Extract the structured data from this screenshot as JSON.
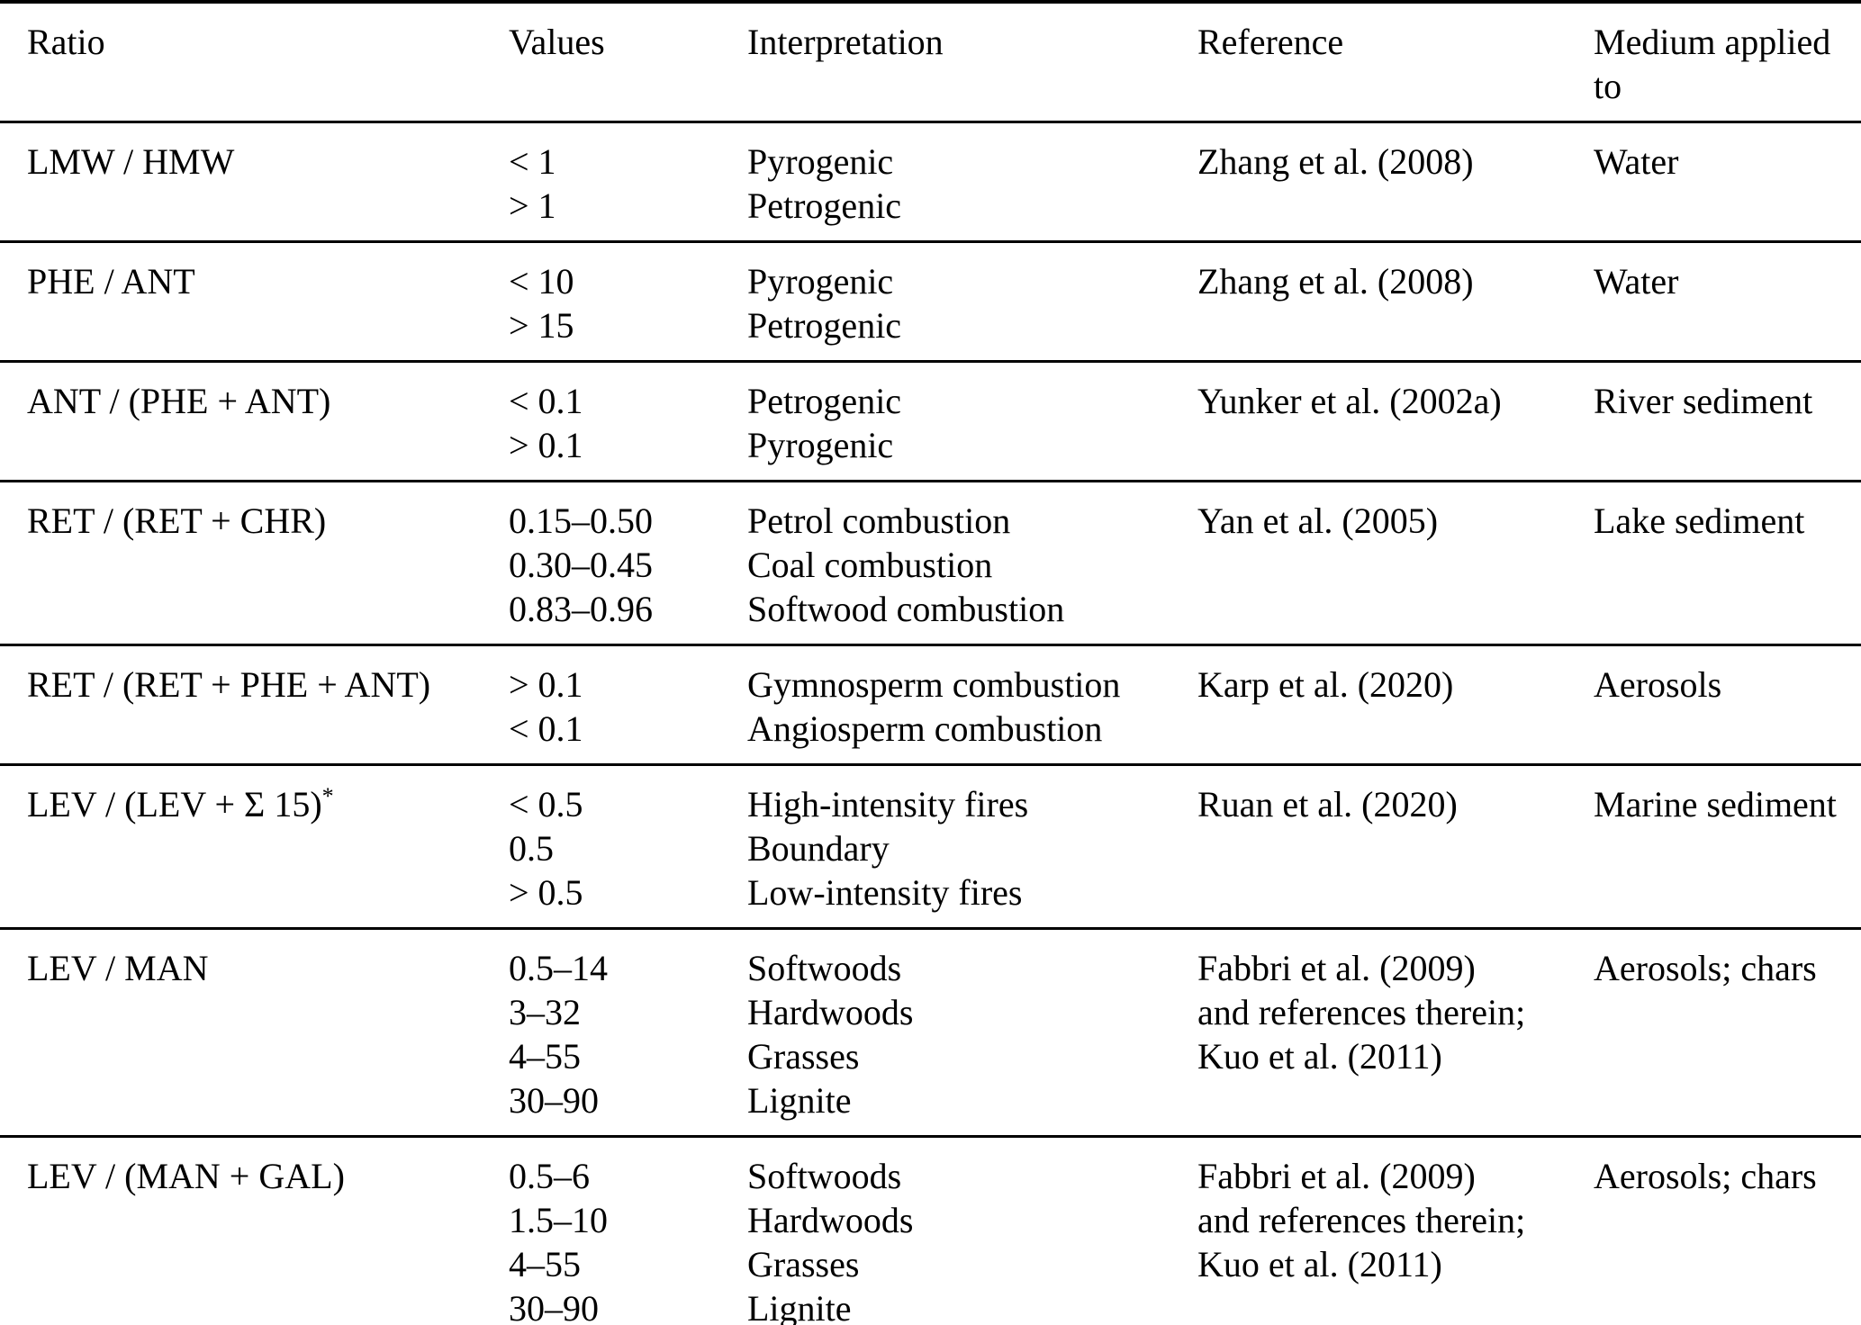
{
  "table": {
    "columns": [
      "Ratio",
      "Values",
      "Interpretation",
      "Reference",
      "Medium applied to"
    ],
    "rows": [
      {
        "ratio": "LMW / HMW",
        "ratio_sup": "",
        "values": [
          "< 1",
          "> 1"
        ],
        "interpretations": [
          "Pyrogenic",
          "Petrogenic"
        ],
        "reference": [
          "Zhang et al. (2008)"
        ],
        "medium": "Water"
      },
      {
        "ratio": "PHE / ANT",
        "ratio_sup": "",
        "values": [
          "< 10",
          "> 15"
        ],
        "interpretations": [
          "Pyrogenic",
          "Petrogenic"
        ],
        "reference": [
          "Zhang et al. (2008)"
        ],
        "medium": "Water"
      },
      {
        "ratio": "ANT / (PHE + ANT)",
        "ratio_sup": "",
        "values": [
          "< 0.1",
          "> 0.1"
        ],
        "interpretations": [
          "Petrogenic",
          "Pyrogenic"
        ],
        "reference": [
          "Yunker et al. (2002a)"
        ],
        "medium": "River sediment"
      },
      {
        "ratio": "RET / (RET + CHR)",
        "ratio_sup": "",
        "values": [
          "0.15–0.50",
          "0.30–0.45",
          "0.83–0.96"
        ],
        "interpretations": [
          "Petrol combustion",
          "Coal combustion",
          "Softwood combustion"
        ],
        "reference": [
          "Yan et al. (2005)"
        ],
        "medium": "Lake sediment"
      },
      {
        "ratio": "RET / (RET + PHE + ANT)",
        "ratio_sup": "",
        "values": [
          "> 0.1",
          "< 0.1"
        ],
        "interpretations": [
          "Gymnosperm combustion",
          "Angiosperm combustion"
        ],
        "reference": [
          "Karp et al. (2020)"
        ],
        "medium": "Aerosols"
      },
      {
        "ratio": "LEV / (LEV + Σ 15)",
        "ratio_sup": "*",
        "values": [
          "< 0.5",
          "0.5",
          "> 0.5"
        ],
        "interpretations": [
          "High-intensity fires",
          "Boundary",
          "Low-intensity fires"
        ],
        "reference": [
          "Ruan et al. (2020)"
        ],
        "medium": "Marine sediment"
      },
      {
        "ratio": "LEV / MAN",
        "ratio_sup": "",
        "values": [
          "0.5–14",
          "3–32",
          "4–55",
          "30–90"
        ],
        "interpretations": [
          "Softwoods",
          "Hardwoods",
          "Grasses",
          "Lignite"
        ],
        "reference": [
          "Fabbri et al. (2009)",
          "and references therein;",
          "Kuo et al. (2011)"
        ],
        "medium": "Aerosols; chars"
      },
      {
        "ratio": "LEV / (MAN + GAL)",
        "ratio_sup": "",
        "values": [
          "0.5–6",
          "1.5–10",
          "4–55",
          "30–90"
        ],
        "interpretations": [
          "Softwoods",
          "Hardwoods",
          "Grasses",
          "Lignite"
        ],
        "reference": [
          "Fabbri et al. (2009)",
          "and references therein;",
          "Kuo et al. (2011)"
        ],
        "medium": "Aerosols; chars"
      }
    ]
  }
}
